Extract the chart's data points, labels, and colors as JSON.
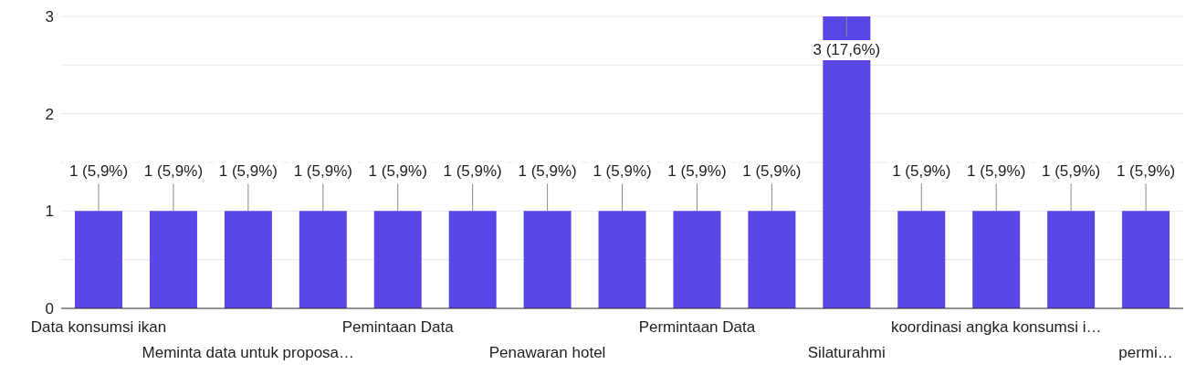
{
  "chart_data": {
    "type": "bar",
    "categories": [
      "Data konsumsi ikan",
      null,
      "Meminta data untuk proposa…",
      null,
      "Pemintaan Data",
      null,
      "Penawaran hotel",
      null,
      "Permintaan Data",
      null,
      "Silaturahmi",
      null,
      "koordinasi angka konsumsi i…",
      null,
      "permi…"
    ],
    "values": [
      1,
      1,
      1,
      1,
      1,
      1,
      1,
      1,
      1,
      1,
      3,
      1,
      1,
      1,
      1
    ],
    "value_labels": [
      "1 (5,9%)",
      "1 (5,9%)",
      "1 (5,9%)",
      "1 (5,9%)",
      "1 (5,9%)",
      "1 (5,9%)",
      "1 (5,9%)",
      "1 (5,9%)",
      "1 (5,9%)",
      "1 (5,9%)",
      "3 (17,6%)",
      "1 (5,9%)",
      "1 (5,9%)",
      "1 (5,9%)",
      "1 (5,9%)"
    ],
    "color": "#5846e6",
    "ylim": [
      0,
      3
    ],
    "yticks": [
      0,
      {
        "value": 0.5,
        "label": null
      },
      1,
      {
        "value": 1.5,
        "label": null
      },
      2,
      {
        "value": 2.5,
        "label": null
      },
      3
    ],
    "grid": "y"
  }
}
